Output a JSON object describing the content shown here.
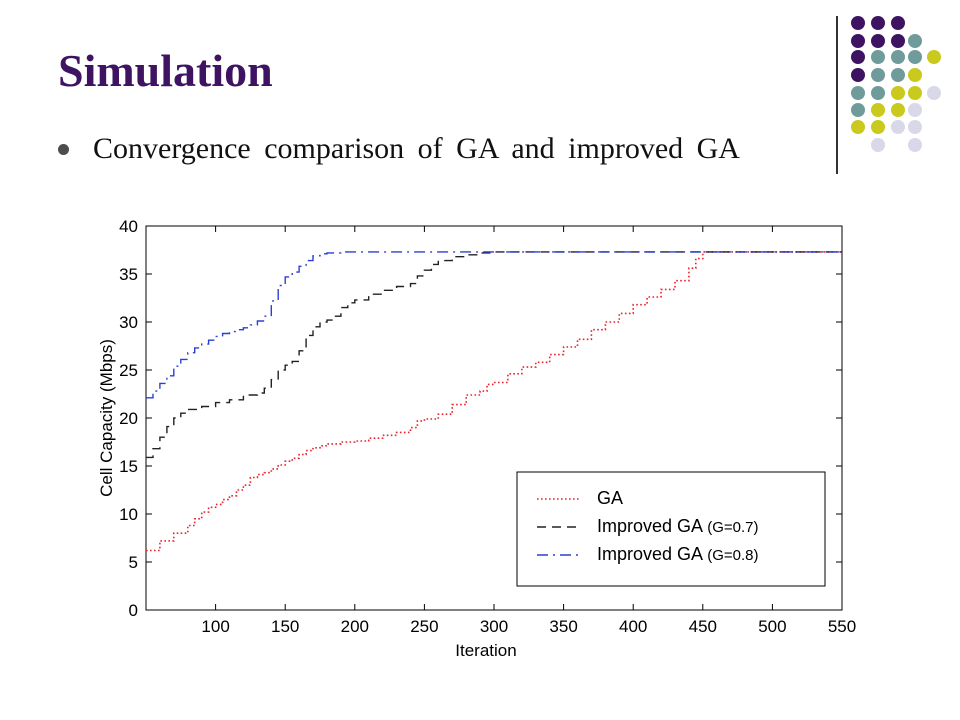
{
  "slide": {
    "title": "Simulation",
    "bullet": "Convergence comparison of GA and improved GA"
  },
  "decoration": {
    "dot_colors": {
      "purple": "#3d1362",
      "teal": "#6f9c9b",
      "lime": "#c9c91e",
      "lavender": "#d8d8e8"
    },
    "divider_color": "#333333"
  },
  "chart_data": {
    "type": "line",
    "title": "",
    "xlabel": "Iteration",
    "ylabel": "Cell Capacity (Mbps)",
    "xlim": [
      50,
      550
    ],
    "ylim": [
      0,
      40
    ],
    "xticks": [
      100,
      150,
      200,
      250,
      300,
      350,
      400,
      450,
      500,
      550
    ],
    "yticks": [
      0,
      5,
      10,
      15,
      20,
      25,
      30,
      35,
      40
    ],
    "grid": false,
    "legend_position": "lower-right",
    "series": [
      {
        "name": "GA",
        "legend_suffix": "",
        "color": "#e8232d",
        "style": "dotted",
        "x": [
          50,
          60,
          70,
          80,
          85,
          90,
          95,
          100,
          105,
          110,
          115,
          120,
          125,
          130,
          135,
          140,
          145,
          150,
          155,
          160,
          165,
          170,
          175,
          180,
          190,
          200,
          210,
          220,
          230,
          240,
          245,
          250,
          260,
          270,
          280,
          290,
          295,
          300,
          310,
          320,
          330,
          340,
          350,
          360,
          370,
          380,
          390,
          400,
          410,
          420,
          430,
          440,
          445,
          450,
          460,
          500,
          550
        ],
        "y": [
          6.2,
          7.2,
          8.0,
          8.8,
          9.5,
          10.2,
          10.7,
          11.0,
          11.5,
          11.9,
          12.5,
          13.0,
          13.8,
          14.1,
          14.3,
          14.7,
          15.1,
          15.5,
          15.8,
          16.2,
          16.6,
          16.9,
          17.1,
          17.3,
          17.5,
          17.6,
          17.9,
          18.2,
          18.5,
          19.0,
          19.7,
          19.9,
          20.4,
          21.4,
          22.4,
          22.8,
          23.5,
          23.7,
          24.6,
          25.3,
          25.8,
          26.6,
          27.4,
          28.2,
          29.2,
          30.0,
          30.9,
          31.8,
          32.6,
          33.4,
          34.3,
          35.6,
          36.6,
          37.3,
          37.3,
          37.3,
          37.3
        ]
      },
      {
        "name": "Improved GA",
        "legend_suffix": "(G=0.7)",
        "color": "#222222",
        "style": "dashed",
        "x": [
          50,
          55,
          60,
          65,
          70,
          75,
          80,
          90,
          100,
          110,
          120,
          130,
          135,
          140,
          145,
          150,
          155,
          160,
          165,
          170,
          175,
          180,
          185,
          190,
          195,
          200,
          210,
          220,
          230,
          240,
          245,
          250,
          255,
          260,
          270,
          280,
          290,
          300,
          550
        ],
        "y": [
          15.9,
          16.8,
          18.0,
          19.1,
          20.0,
          20.5,
          20.9,
          21.2,
          21.6,
          21.9,
          22.4,
          22.6,
          23.1,
          24.0,
          25.0,
          25.5,
          25.9,
          27.0,
          28.6,
          29.5,
          30.0,
          30.2,
          30.6,
          31.5,
          32.0,
          32.3,
          32.9,
          33.3,
          33.7,
          34.0,
          34.8,
          35.4,
          36.0,
          36.4,
          36.8,
          37.0,
          37.2,
          37.3,
          37.3
        ]
      },
      {
        "name": "Improved GA",
        "legend_suffix": "(G=0.8)",
        "color": "#2b3fd6",
        "style": "dashdot",
        "x": [
          50,
          55,
          60,
          65,
          70,
          75,
          80,
          85,
          90,
          95,
          100,
          105,
          110,
          115,
          120,
          125,
          130,
          135,
          140,
          145,
          150,
          155,
          160,
          165,
          170,
          175,
          180,
          190,
          200,
          550
        ],
        "y": [
          22.1,
          22.8,
          23.6,
          24.4,
          25.4,
          26.1,
          26.8,
          27.3,
          27.7,
          28.1,
          28.5,
          28.8,
          29.0,
          29.2,
          29.4,
          29.7,
          30.1,
          30.6,
          32.2,
          33.8,
          34.7,
          35.2,
          35.8,
          36.4,
          36.9,
          37.1,
          37.2,
          37.3,
          37.3,
          37.3
        ]
      }
    ]
  }
}
